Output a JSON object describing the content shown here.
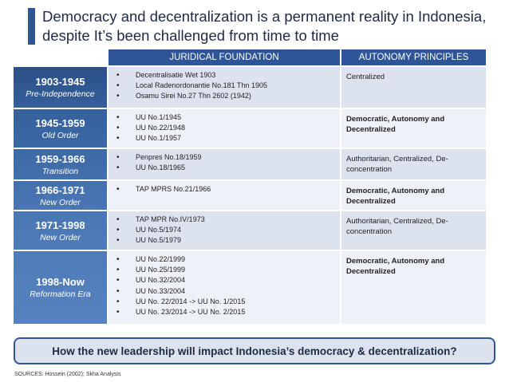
{
  "title": "Democracy and decentralization is a permanent reality in Indonesia, despite It’s been challenged from time to time",
  "table": {
    "headers": {
      "juridical": "JURIDICAL FOUNDATION",
      "autonomy": "AUTONOMY PRINCIPLES"
    },
    "colors": {
      "header": "#2e5597",
      "era_dark": "#2c4f86",
      "era_light": "#4c76b6",
      "row_shade": "#dde3ee",
      "row_light": "#eef1f7"
    },
    "rows": [
      {
        "years": "1903-1945",
        "era": "Pre-Independence",
        "laws": [
          "Decentralisatie Wet 1903",
          "Local Radenordonantie No.181 Thn 1905",
          "Osamu Sirei No.27 Thn 2602 (1942)"
        ],
        "principles": "Centralized",
        "principles_bold": false
      },
      {
        "years": "1945-1959",
        "era": "Old Order",
        "laws": [
          "UU No.1/1945",
          "UU No.22/1948",
          "UU No.1/1957"
        ],
        "principles": "Democratic, Autonomy and Decentralized",
        "principles_bold": true
      },
      {
        "years": "1959-1966",
        "era": "Transition",
        "laws": [
          "Penpres No.18/1959",
          "UU No.18/1965"
        ],
        "principles": "Authoritarian, Centralized, De-concentration",
        "principles_bold": false
      },
      {
        "years": "1966-1971",
        "era": "New Order",
        "laws": [
          "TAP MPRS No.21/1966"
        ],
        "principles": "Democratic, Autonomy and Decentralized",
        "principles_bold": true
      },
      {
        "years": "1971-1998",
        "era": "New Order",
        "laws": [
          "TAP MPR No.IV/1973",
          "UU No.5/1974",
          "UU No.5/1979"
        ],
        "principles": "Authoritarian, Centralized, De-concentration",
        "principles_bold": false
      },
      {
        "years": "1998-Now",
        "era": "Reformation Era",
        "laws": [
          "UU No.22/1999",
          "UU No.25/1999",
          "UU No.32/2004",
          "UU No.33/2004",
          "UU No. 22/2014 -> UU No. 1/2015",
          "UU No. 23/2014 -> UU No. 2/2015"
        ],
        "principles": "Democratic, Autonomy and Decentralized",
        "principles_bold": true
      }
    ]
  },
  "question": "How the new leadership will impact Indonesia’s democracy & decentralization?",
  "sources": "SOURCES: Hossein (2002); Skha Analysis"
}
